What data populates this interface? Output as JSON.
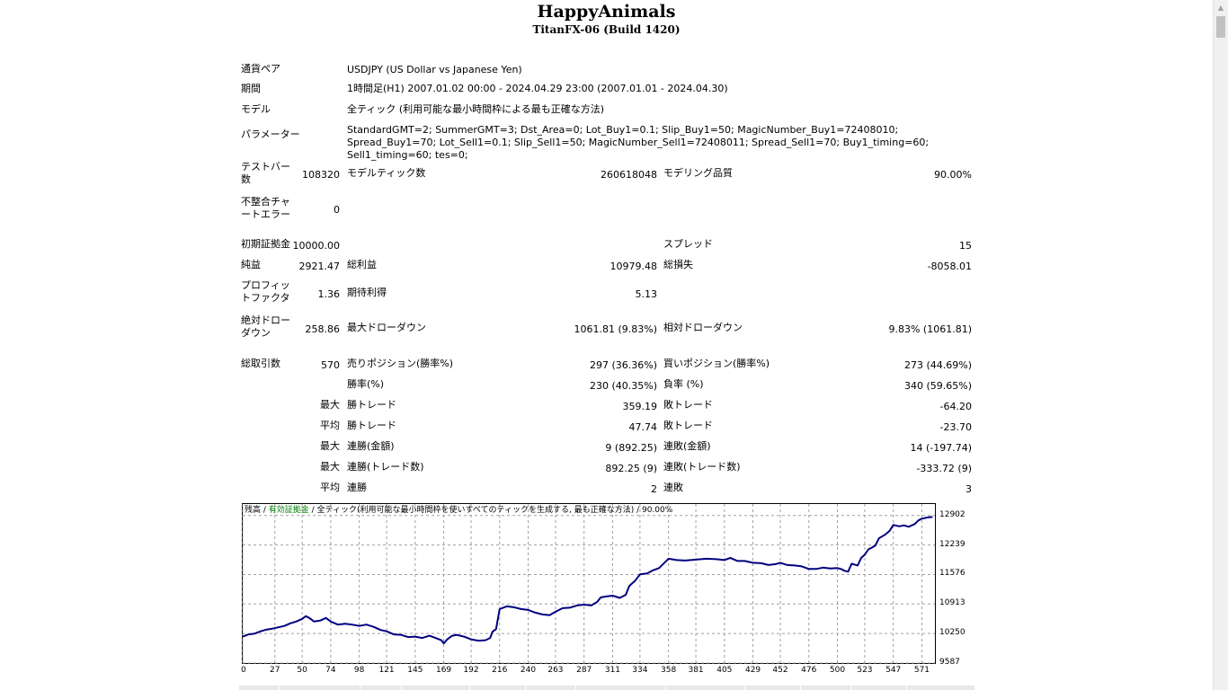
{
  "header": {
    "title": "HappyAnimals",
    "subtitle": "TitanFX-06 (Build 1420)"
  },
  "report": {
    "symbol_label": "通貨ペア",
    "symbol_value": "USDJPY (US Dollar vs Japanese Yen)",
    "period_label": "期間",
    "period_value": "1時間足(H1) 2007.01.02 00:00 - 2024.04.29 23:00 (2007.01.01 - 2024.04.30)",
    "model_label": "モデル",
    "model_value": "全ティック (利用可能な最小時間枠による最も正確な方法)",
    "params_label": "パラメーター",
    "params_value": "StandardGMT=2; SummerGMT=3; Dst_Area=0; Lot_Buy1=0.1; Slip_Buy1=50; MagicNumber_Buy1=72408010; Spread_Buy1=70; Lot_Sell1=0.1; Slip_Sell1=50; MagicNumber_Sell1=72408011; Spread_Sell1=70; Buy1_timing=60; Sell1_timing=60; tes=0;",
    "bars_label": "テストバー数",
    "bars_value": "108320",
    "ticks_label": "モデルティック数",
    "ticks_value": "260618048",
    "quality_label": "モデリング品質",
    "quality_value": "90.00%",
    "mismatch_label": "不整合チャートエラー",
    "mismatch_value": "0",
    "deposit_label": "初期証拠金",
    "deposit_value": "10000.00",
    "spread_label": "スプレッド",
    "spread_value": "15",
    "net_label": "純益",
    "net_value": "2921.47",
    "gross_profit_label": "総利益",
    "gross_profit_value": "10979.48",
    "gross_loss_label": "総損失",
    "gross_loss_value": "-8058.01",
    "pf_label": "プロフィットファクタ",
    "pf_value": "1.36",
    "expected_label": "期待利得",
    "expected_value": "5.13",
    "abs_dd_label": "絶対ドローダウン",
    "abs_dd_value": "258.86",
    "max_dd_label": "最大ドローダウン",
    "max_dd_value": "1061.81 (9.83%)",
    "rel_dd_label": "相対ドローダウン",
    "rel_dd_value": "9.83% (1061.81)",
    "trades_label": "総取引数",
    "trades_value": "570",
    "short_label": "売りポジション(勝率%)",
    "short_value": "297 (36.36%)",
    "long_label": "買いポジション(勝率%)",
    "long_value": "273 (44.69%)",
    "win_pct_label": "勝率(%)",
    "win_pct_value": "230 (40.35%)",
    "loss_pct_label": "負率 (%)",
    "loss_pct_value": "340 (59.65%)",
    "max_word": "最大",
    "avg_word": "平均",
    "largest_win_label": "勝トレード",
    "largest_win_value": "359.19",
    "largest_loss_label": "敗トレード",
    "largest_loss_value": "-64.20",
    "avg_win_label": "勝トレード",
    "avg_win_value": "47.74",
    "avg_loss_label": "敗トレード",
    "avg_loss_value": "-23.70",
    "max_consec_wins_label": "連勝(金額)",
    "max_consec_wins_value": "9 (892.25)",
    "max_consec_losses_label": "連敗(金額)",
    "max_consec_losses_value": "14 (-197.74)",
    "max_consec_profit_label": "連勝(トレード数)",
    "max_consec_profit_value": "892.25 (9)",
    "max_consec_loss_label": "連敗(トレード数)",
    "max_consec_loss_value": "-333.72 (9)",
    "avg_consec_wins_label": "連勝",
    "avg_consec_wins_value": "2",
    "avg_consec_losses_label": "連敗",
    "avg_consec_losses_value": "3"
  },
  "chart_legend": {
    "balance": "残高",
    "sep1": " / ",
    "equity": "有効証拠金",
    "rest": " / 全ティック(利用可能な最小時間枠を使いすべてのティックを生成する, 最も正確な方法) / 90.00%"
  },
  "colors": {
    "balance_line": "#000080",
    "equity_label": "#008000",
    "grid": "#a0a0a0"
  },
  "chart_data": {
    "type": "line",
    "title": "",
    "xlabel": "",
    "ylabel": "",
    "xlim": [
      0,
      582
    ],
    "ylim": [
      9587,
      13160
    ],
    "x_ticks": [
      0,
      27,
      50,
      74,
      98,
      121,
      145,
      169,
      192,
      216,
      240,
      263,
      287,
      311,
      334,
      358,
      381,
      405,
      429,
      452,
      476,
      500,
      523,
      547,
      571
    ],
    "x_tick_labels": [
      "0",
      "27",
      "50",
      "74",
      "98",
      "121",
      "145",
      "169",
      "192",
      "216",
      "240",
      "263",
      "287",
      "311",
      "334",
      "358",
      "381",
      "405",
      "429",
      "452",
      "476",
      "500",
      "523",
      "547",
      "571"
    ],
    "y_ticks": [
      9587,
      10250,
      10913,
      11576,
      12239,
      12902
    ],
    "y_tick_labels": [
      "9587",
      "10250",
      "10913",
      "11576",
      "12239",
      "12902"
    ],
    "grid": true,
    "series": [
      {
        "name": "残高",
        "x": [
          0,
          5,
          10,
          15,
          20,
          25,
          30,
          35,
          40,
          45,
          50,
          53,
          56,
          60,
          65,
          70,
          74,
          80,
          86,
          92,
          98,
          104,
          110,
          116,
          121,
          127,
          133,
          139,
          145,
          151,
          157,
          163,
          167,
          169,
          172,
          176,
          180,
          186,
          192,
          198,
          204,
          208,
          210,
          213,
          216,
          222,
          228,
          234,
          240,
          246,
          252,
          258,
          263,
          269,
          275,
          281,
          287,
          293,
          298,
          301,
          305,
          311,
          317,
          322,
          325,
          330,
          334,
          340,
          345,
          350,
          358,
          365,
          372,
          381,
          390,
          398,
          405,
          410,
          416,
          422,
          429,
          436,
          442,
          448,
          452,
          458,
          464,
          470,
          476,
          482,
          488,
          494,
          500,
          503,
          506,
          509,
          512,
          517,
          520,
          523,
          526,
          529,
          532,
          535,
          540,
          544,
          547,
          552,
          556,
          560,
          565,
          568,
          571,
          576,
          580
        ],
        "values": [
          10180,
          10230,
          10250,
          10300,
          10340,
          10360,
          10390,
          10420,
          10480,
          10520,
          10580,
          10640,
          10600,
          10520,
          10540,
          10600,
          10520,
          10450,
          10470,
          10450,
          10420,
          10450,
          10400,
          10330,
          10300,
          10230,
          10220,
          10170,
          10180,
          10150,
          10200,
          10140,
          10100,
          10030,
          10120,
          10200,
          10220,
          10180,
          10120,
          10090,
          10100,
          10150,
          10290,
          10350,
          10800,
          10860,
          10840,
          10800,
          10780,
          10720,
          10680,
          10660,
          10740,
          10820,
          10830,
          10880,
          10900,
          10880,
          10960,
          11060,
          11080,
          11100,
          11050,
          11120,
          11320,
          11440,
          11580,
          11600,
          11670,
          11720,
          11930,
          11900,
          11890,
          11910,
          11930,
          11920,
          11900,
          11950,
          11880,
          11880,
          11840,
          11830,
          11790,
          11810,
          11840,
          11790,
          11780,
          11760,
          11700,
          11700,
          11730,
          11710,
          11720,
          11700,
          11660,
          11640,
          11820,
          11780,
          11950,
          12020,
          12140,
          12180,
          12230,
          12390,
          12470,
          12560,
          12690,
          12660,
          12680,
          12650,
          12710,
          12790,
          12830,
          12860,
          12870
        ]
      }
    ]
  }
}
